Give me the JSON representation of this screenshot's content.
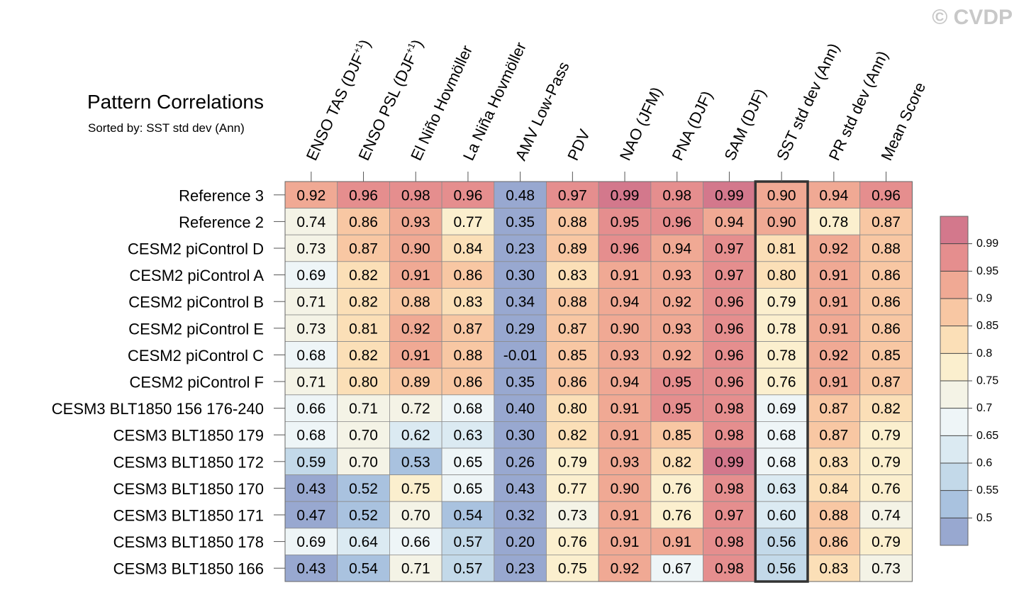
{
  "watermark": "© CVDP",
  "chart_data": {
    "type": "heatmap",
    "title": "Pattern Correlations",
    "subtitle": "Sorted by: SST std dev (Ann)",
    "columns": [
      "ENSO TAS (DJF+1)",
      "ENSO PSL (DJF+1)",
      "El Niño Hovmöller",
      "La Niña Hovmöller",
      "AMV Low-Pass",
      "PDV",
      "NAO (JFM)",
      "PNA (DJF)",
      "SAM (DJF)",
      "SST std dev (Ann)",
      "PR std dev (Ann)",
      "Mean Score"
    ],
    "highlighted_column": "SST std dev (Ann)",
    "rows": [
      {
        "name": "Reference 3",
        "values": [
          0.92,
          0.96,
          0.98,
          0.96,
          0.48,
          0.97,
          0.99,
          0.98,
          0.99,
          0.9,
          0.94,
          0.96
        ]
      },
      {
        "name": "Reference 2",
        "values": [
          0.74,
          0.86,
          0.93,
          0.77,
          0.35,
          0.88,
          0.95,
          0.96,
          0.94,
          0.9,
          0.78,
          0.87
        ]
      },
      {
        "name": "CESM2 piControl D",
        "values": [
          0.73,
          0.87,
          0.9,
          0.84,
          0.23,
          0.89,
          0.96,
          0.94,
          0.97,
          0.81,
          0.92,
          0.88
        ]
      },
      {
        "name": "CESM2 piControl A",
        "values": [
          0.69,
          0.82,
          0.91,
          0.86,
          0.3,
          0.83,
          0.91,
          0.93,
          0.97,
          0.8,
          0.91,
          0.86
        ]
      },
      {
        "name": "CESM2 piControl B",
        "values": [
          0.71,
          0.82,
          0.88,
          0.83,
          0.34,
          0.88,
          0.94,
          0.92,
          0.96,
          0.79,
          0.91,
          0.86
        ]
      },
      {
        "name": "CESM2 piControl E",
        "values": [
          0.73,
          0.81,
          0.92,
          0.87,
          0.29,
          0.87,
          0.9,
          0.93,
          0.96,
          0.78,
          0.91,
          0.86
        ]
      },
      {
        "name": "CESM2 piControl C",
        "values": [
          0.68,
          0.82,
          0.91,
          0.88,
          -0.01,
          0.85,
          0.93,
          0.92,
          0.96,
          0.78,
          0.92,
          0.85
        ]
      },
      {
        "name": "CESM2 piControl F",
        "values": [
          0.71,
          0.8,
          0.89,
          0.86,
          0.35,
          0.86,
          0.94,
          0.95,
          0.96,
          0.76,
          0.91,
          0.87
        ]
      },
      {
        "name": "CESM3 BLT1850 156 176-240",
        "values": [
          0.66,
          0.71,
          0.72,
          0.68,
          0.4,
          0.8,
          0.91,
          0.95,
          0.98,
          0.69,
          0.87,
          0.82
        ]
      },
      {
        "name": "CESM3 BLT1850 179",
        "values": [
          0.68,
          0.7,
          0.62,
          0.63,
          0.3,
          0.82,
          0.91,
          0.85,
          0.98,
          0.68,
          0.87,
          0.79
        ]
      },
      {
        "name": "CESM3 BLT1850 172",
        "values": [
          0.59,
          0.7,
          0.53,
          0.65,
          0.26,
          0.79,
          0.93,
          0.82,
          0.99,
          0.68,
          0.83,
          0.79
        ]
      },
      {
        "name": "CESM3 BLT1850 170",
        "values": [
          0.43,
          0.52,
          0.75,
          0.65,
          0.43,
          0.77,
          0.9,
          0.76,
          0.98,
          0.63,
          0.84,
          0.76
        ]
      },
      {
        "name": "CESM3 BLT1850 171",
        "values": [
          0.47,
          0.52,
          0.7,
          0.54,
          0.32,
          0.73,
          0.91,
          0.76,
          0.97,
          0.6,
          0.88,
          0.74
        ]
      },
      {
        "name": "CESM3 BLT1850 178",
        "values": [
          0.69,
          0.64,
          0.66,
          0.57,
          0.2,
          0.76,
          0.91,
          0.91,
          0.98,
          0.56,
          0.86,
          0.79
        ]
      },
      {
        "name": "CESM3 BLT1850 166",
        "values": [
          0.43,
          0.54,
          0.71,
          0.57,
          0.23,
          0.75,
          0.92,
          0.67,
          0.98,
          0.56,
          0.83,
          0.73
        ]
      }
    ],
    "colorbar": {
      "labels": [
        "0.99",
        "0.95",
        "0.9",
        "0.85",
        "0.8",
        "0.75",
        "0.7",
        "0.65",
        "0.6",
        "0.55",
        "0.5"
      ],
      "thresholds": [
        0.5,
        0.55,
        0.6,
        0.65,
        0.7,
        0.75,
        0.8,
        0.85,
        0.9,
        0.95,
        0.99
      ],
      "colors": [
        "#98a8d0",
        "#a9c2df",
        "#c3d9e9",
        "#dbeaf2",
        "#eef5f7",
        "#f4f3e6",
        "#fbefce",
        "#fbdfb7",
        "#f8c7a3",
        "#f0a994",
        "#e58e8e",
        "#d3788c"
      ]
    }
  }
}
